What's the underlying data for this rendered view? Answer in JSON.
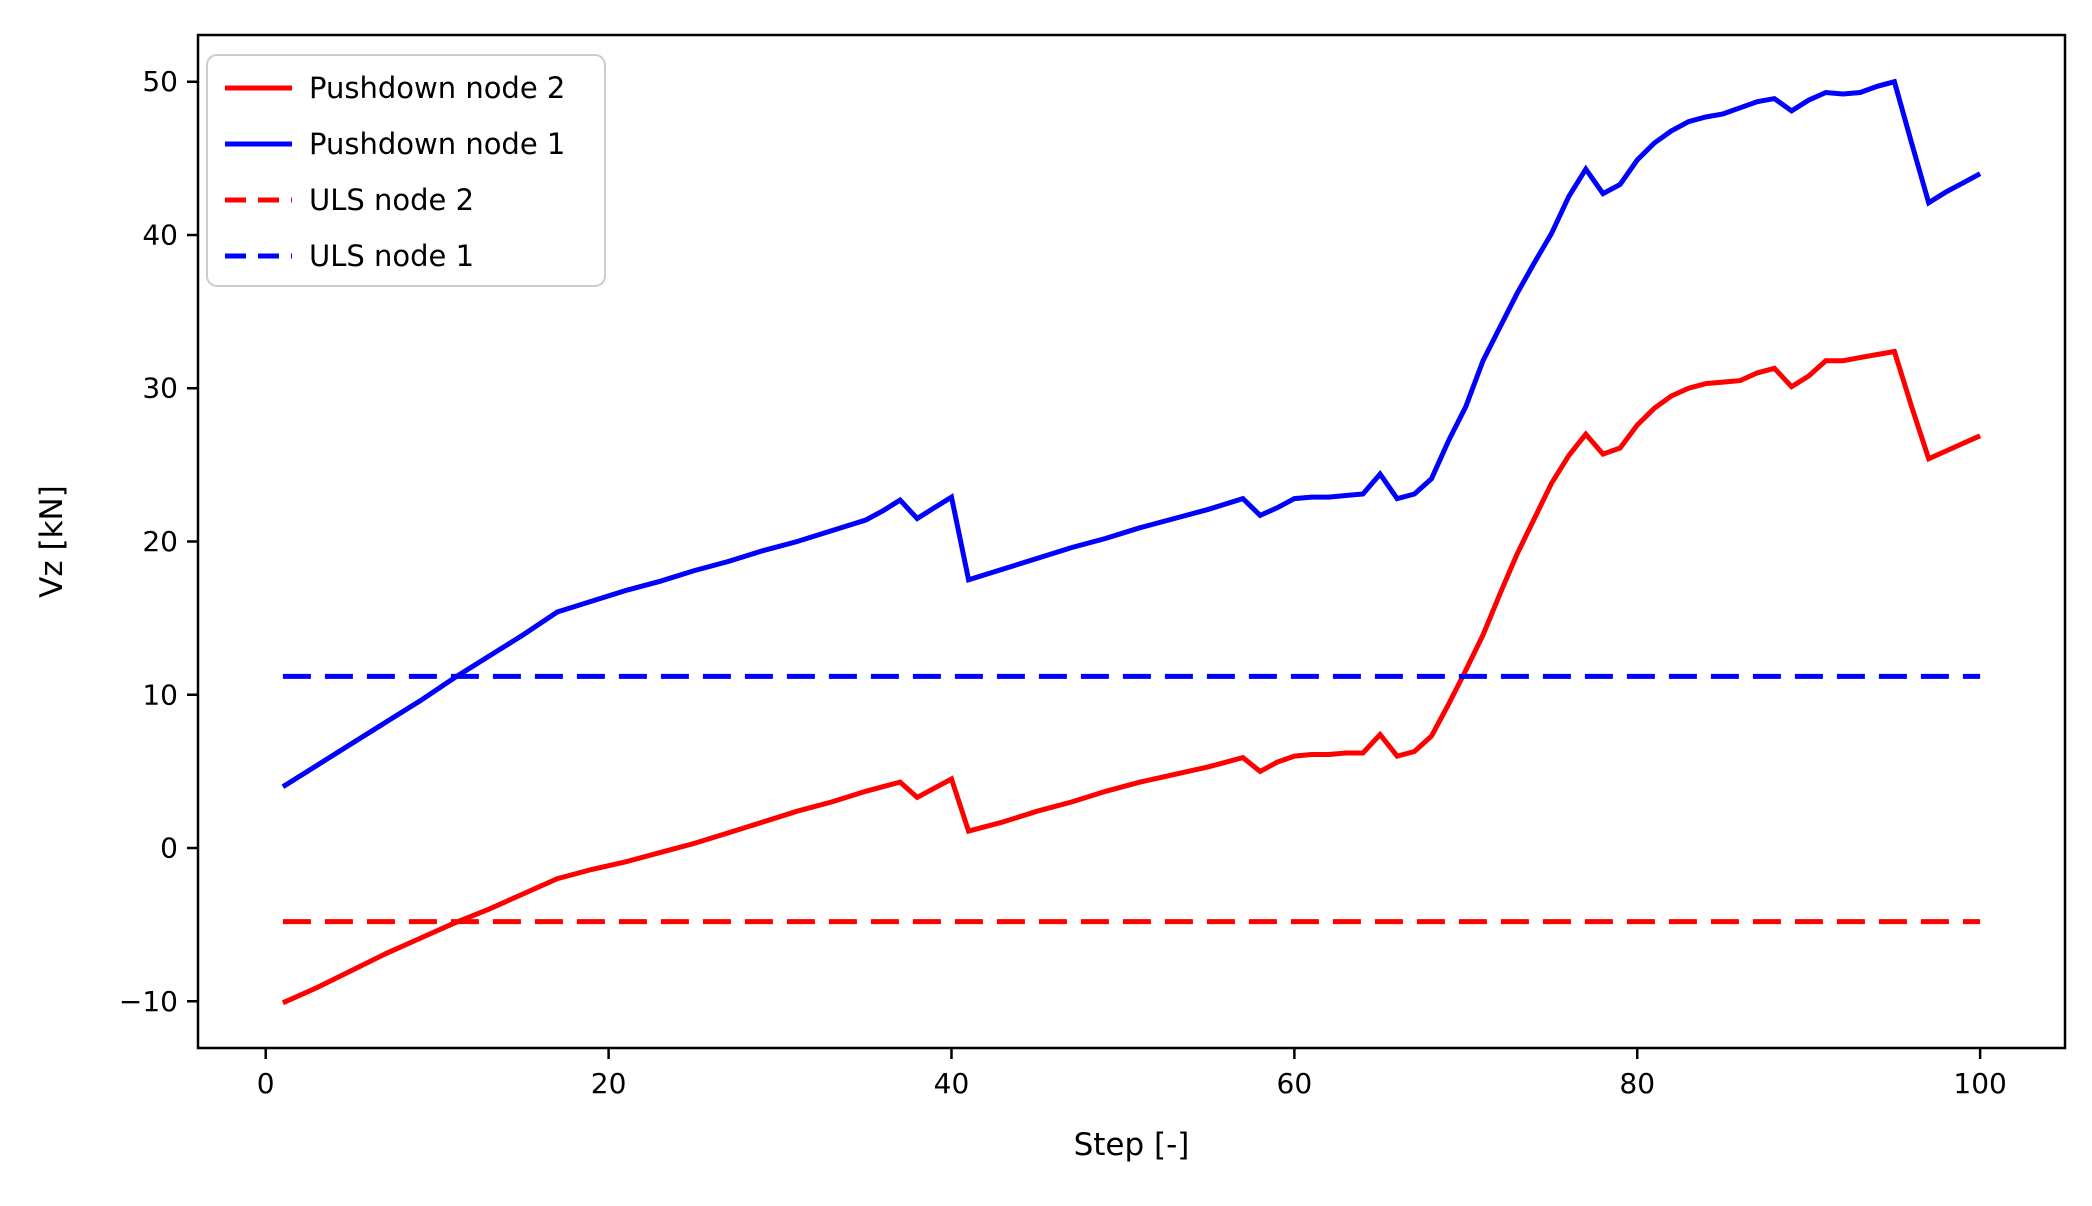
{
  "figure": {
    "background": "#ffffff"
  },
  "chart_data": {
    "type": "line",
    "title": "",
    "xlabel": "Step [-]",
    "ylabel": "Vz [kN]",
    "xlim": [
      -3.95,
      104.95
    ],
    "ylim": [
      -13.05,
      53.05
    ],
    "grid": false,
    "xticks": {
      "values": [
        0,
        20,
        40,
        60,
        80,
        100
      ],
      "labels": [
        "0",
        "20",
        "40",
        "60",
        "80",
        "100"
      ]
    },
    "yticks": {
      "values": [
        -10,
        0,
        10,
        20,
        30,
        40,
        50
      ],
      "labels": [
        "−10",
        "0",
        "10",
        "20",
        "30",
        "40",
        "50"
      ]
    },
    "legend": {
      "position": "upper left"
    },
    "series": [
      {
        "name": "Pushdown node 2",
        "color": "#ff0000",
        "style": "solid",
        "points": [
          [
            1,
            -10.1
          ],
          [
            3,
            -9.1
          ],
          [
            5,
            -8.0
          ],
          [
            7,
            -6.9
          ],
          [
            9,
            -5.9
          ],
          [
            11,
            -4.9
          ],
          [
            13,
            -4.0
          ],
          [
            15,
            -3.0
          ],
          [
            17,
            -2.0
          ],
          [
            19,
            -1.4
          ],
          [
            21,
            -0.9
          ],
          [
            23,
            -0.3
          ],
          [
            25,
            0.3
          ],
          [
            27,
            1.0
          ],
          [
            29,
            1.7
          ],
          [
            31,
            2.4
          ],
          [
            33,
            3.0
          ],
          [
            35,
            3.7
          ],
          [
            36,
            4.0
          ],
          [
            37,
            4.3
          ],
          [
            38,
            3.3
          ],
          [
            39,
            3.9
          ],
          [
            40,
            4.5
          ],
          [
            41,
            1.1
          ],
          [
            43,
            1.7
          ],
          [
            45,
            2.4
          ],
          [
            47,
            3.0
          ],
          [
            49,
            3.7
          ],
          [
            51,
            4.3
          ],
          [
            53,
            4.8
          ],
          [
            55,
            5.3
          ],
          [
            57,
            5.9
          ],
          [
            58,
            5.0
          ],
          [
            59,
            5.6
          ],
          [
            60,
            6.0
          ],
          [
            61,
            6.1
          ],
          [
            62,
            6.1
          ],
          [
            63,
            6.2
          ],
          [
            64,
            6.2
          ],
          [
            65,
            7.4
          ],
          [
            66,
            6.0
          ],
          [
            67,
            6.3
          ],
          [
            68,
            7.3
          ],
          [
            69,
            9.4
          ],
          [
            70,
            11.6
          ],
          [
            71,
            13.9
          ],
          [
            72,
            16.6
          ],
          [
            73,
            19.2
          ],
          [
            74,
            21.5
          ],
          [
            75,
            23.8
          ],
          [
            76,
            25.6
          ],
          [
            77,
            27.0
          ],
          [
            78,
            25.7
          ],
          [
            79,
            26.1
          ],
          [
            80,
            27.6
          ],
          [
            81,
            28.7
          ],
          [
            82,
            29.5
          ],
          [
            83,
            30.0
          ],
          [
            84,
            30.3
          ],
          [
            85,
            30.4
          ],
          [
            86,
            30.5
          ],
          [
            87,
            31.0
          ],
          [
            88,
            31.3
          ],
          [
            89,
            30.1
          ],
          [
            90,
            30.8
          ],
          [
            91,
            31.8
          ],
          [
            92,
            31.8
          ],
          [
            93,
            32.0
          ],
          [
            94,
            32.2
          ],
          [
            95,
            32.4
          ],
          [
            96,
            28.8
          ],
          [
            97,
            25.4
          ],
          [
            98,
            25.9
          ],
          [
            99,
            26.4
          ],
          [
            100,
            26.9
          ]
        ]
      },
      {
        "name": "Pushdown node 1",
        "color": "#0000ff",
        "style": "solid",
        "points": [
          [
            1,
            4.0
          ],
          [
            3,
            5.4
          ],
          [
            5,
            6.8
          ],
          [
            7,
            8.2
          ],
          [
            9,
            9.6
          ],
          [
            11,
            11.1
          ],
          [
            13,
            12.5
          ],
          [
            15,
            13.9
          ],
          [
            17,
            15.4
          ],
          [
            19,
            16.1
          ],
          [
            21,
            16.8
          ],
          [
            23,
            17.4
          ],
          [
            25,
            18.1
          ],
          [
            27,
            18.7
          ],
          [
            29,
            19.4
          ],
          [
            31,
            20.0
          ],
          [
            33,
            20.7
          ],
          [
            35,
            21.4
          ],
          [
            36,
            22.0
          ],
          [
            37,
            22.7
          ],
          [
            38,
            21.5
          ],
          [
            39,
            22.2
          ],
          [
            40,
            22.9
          ],
          [
            41,
            17.5
          ],
          [
            43,
            18.2
          ],
          [
            45,
            18.9
          ],
          [
            47,
            19.6
          ],
          [
            49,
            20.2
          ],
          [
            51,
            20.9
          ],
          [
            53,
            21.5
          ],
          [
            55,
            22.1
          ],
          [
            57,
            22.8
          ],
          [
            58,
            21.7
          ],
          [
            59,
            22.2
          ],
          [
            60,
            22.8
          ],
          [
            61,
            22.9
          ],
          [
            62,
            22.9
          ],
          [
            63,
            23.0
          ],
          [
            64,
            23.1
          ],
          [
            65,
            24.4
          ],
          [
            66,
            22.8
          ],
          [
            67,
            23.1
          ],
          [
            68,
            24.1
          ],
          [
            69,
            26.6
          ],
          [
            70,
            28.8
          ],
          [
            71,
            31.8
          ],
          [
            72,
            34.0
          ],
          [
            73,
            36.2
          ],
          [
            74,
            38.2
          ],
          [
            75,
            40.1
          ],
          [
            76,
            42.5
          ],
          [
            77,
            44.3
          ],
          [
            78,
            42.7
          ],
          [
            79,
            43.3
          ],
          [
            80,
            44.9
          ],
          [
            81,
            46.0
          ],
          [
            82,
            46.8
          ],
          [
            83,
            47.4
          ],
          [
            84,
            47.7
          ],
          [
            85,
            47.9
          ],
          [
            86,
            48.3
          ],
          [
            87,
            48.7
          ],
          [
            88,
            48.9
          ],
          [
            89,
            48.1
          ],
          [
            90,
            48.8
          ],
          [
            91,
            49.3
          ],
          [
            92,
            49.2
          ],
          [
            93,
            49.3
          ],
          [
            94,
            49.7
          ],
          [
            95,
            50.0
          ],
          [
            96,
            46.0
          ],
          [
            97,
            42.1
          ],
          [
            98,
            42.8
          ],
          [
            99,
            43.4
          ],
          [
            100,
            44.0
          ]
        ]
      },
      {
        "name": "ULS node 2",
        "color": "#ff0000",
        "style": "dashed",
        "points": [
          [
            1,
            -4.8
          ],
          [
            100,
            -4.8
          ]
        ]
      },
      {
        "name": "ULS node 1",
        "color": "#0000ff",
        "style": "dashed",
        "points": [
          [
            1,
            11.2
          ],
          [
            100,
            11.2
          ]
        ]
      }
    ]
  }
}
